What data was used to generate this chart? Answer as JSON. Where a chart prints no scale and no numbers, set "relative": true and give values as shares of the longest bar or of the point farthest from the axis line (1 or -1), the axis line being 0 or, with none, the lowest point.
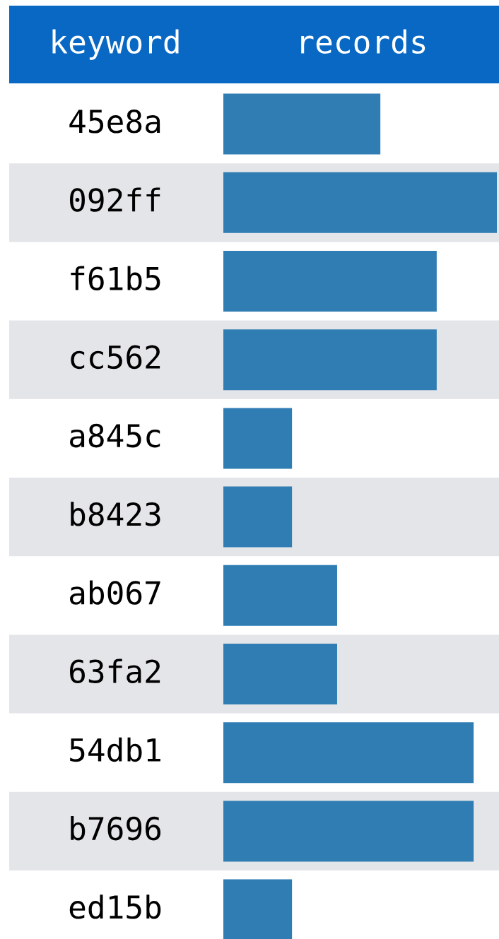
{
  "chart_data": {
    "type": "bar",
    "orientation": "horizontal",
    "relative": true,
    "ylabel": "keyword",
    "xlabel": "records",
    "color": "#2f7db3",
    "categories": [
      "45e8a",
      "092ff",
      "f61b5",
      "cc562",
      "a845c",
      "b8423",
      "ab067",
      "63fa2",
      "54db1",
      "b7696",
      "ed15b"
    ],
    "values": [
      0.574,
      1,
      0.78,
      0.78,
      0.251,
      0.251,
      0.416,
      0.416,
      0.915,
      0.915,
      0.251
    ]
  }
}
